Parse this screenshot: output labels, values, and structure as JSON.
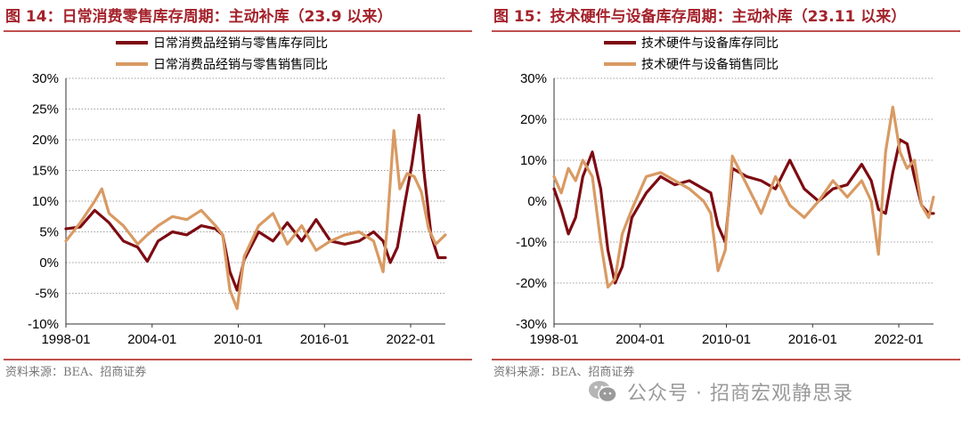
{
  "figures": [
    {
      "title": "图 14：日常消费零售库存周期：主动补库（23.9 以来）",
      "source": "资料来源：BEA、招商证券"
    },
    {
      "title": "图 15：技术硬件与设备库存周期：主动补库（23.11 以来）",
      "source": "资料来源：BEA、招商证券"
    }
  ],
  "watermark": {
    "text": "公众号 · 招商宏观静思录",
    "icon": "wechat-icon",
    "color": "#9a9a9a"
  },
  "colors": {
    "inventory": "#7d0b12",
    "sales": "#d99a63",
    "title": "#a4222b",
    "rule": "#c0504d",
    "grid": "#a0a0a0"
  },
  "chart_data": [
    {
      "type": "line",
      "title": "",
      "xlabel": "",
      "ylabel": "",
      "xlim": [
        "1998-01",
        "2024-06"
      ],
      "ylim": [
        -10,
        30
      ],
      "y_unit": "%",
      "grid": "horizontal",
      "legend": "top-center",
      "x_tick_labels": [
        "1998-01",
        "2004-01",
        "2010-01",
        "2016-01",
        "2022-01"
      ],
      "y_tick_labels": [
        "-10%",
        "-5%",
        "0%",
        "5%",
        "10%",
        "15%",
        "20%",
        "25%",
        "30%"
      ],
      "series": [
        {
          "name": "日常消费品经销与零售库存同比",
          "color": "#7d0b12",
          "x": [
            "1998-01",
            "1999-01",
            "2000-01",
            "2001-01",
            "2002-01",
            "2003-01",
            "2003-09",
            "2004-06",
            "2005-06",
            "2006-06",
            "2007-06",
            "2008-06",
            "2008-12",
            "2009-06",
            "2009-12",
            "2010-06",
            "2011-06",
            "2012-06",
            "2013-06",
            "2014-06",
            "2015-06",
            "2016-06",
            "2017-06",
            "2018-06",
            "2019-06",
            "2020-02",
            "2020-08",
            "2021-02",
            "2021-08",
            "2022-02",
            "2022-08",
            "2022-12",
            "2023-06",
            "2023-12",
            "2024-06"
          ],
          "values": [
            5.5,
            5.8,
            8.5,
            6.5,
            3.5,
            2.5,
            0.2,
            3.5,
            5.0,
            4.5,
            6.0,
            5.5,
            4.5,
            -1.5,
            -4.5,
            0.5,
            5.0,
            3.5,
            6.5,
            3.5,
            7.0,
            3.5,
            3.0,
            3.5,
            5.0,
            3.5,
            0.0,
            2.5,
            9.5,
            16.0,
            24.0,
            15.0,
            4.5,
            0.8,
            0.8
          ]
        },
        {
          "name": "日常消费品经销与零售销售同比",
          "color": "#d99a63",
          "x": [
            "1998-01",
            "1999-01",
            "2000-01",
            "2000-07",
            "2001-01",
            "2002-01",
            "2003-01",
            "2003-09",
            "2004-06",
            "2005-06",
            "2006-06",
            "2007-06",
            "2008-06",
            "2008-12",
            "2009-06",
            "2009-12",
            "2010-06",
            "2011-06",
            "2012-06",
            "2013-06",
            "2014-06",
            "2015-06",
            "2016-06",
            "2017-06",
            "2018-06",
            "2019-06",
            "2020-02",
            "2020-05",
            "2020-11",
            "2021-04",
            "2021-10",
            "2022-04",
            "2022-10",
            "2023-04",
            "2023-10",
            "2024-06"
          ],
          "values": [
            3.5,
            6.5,
            10.0,
            12.0,
            8.0,
            6.0,
            3.0,
            4.5,
            6.0,
            7.5,
            7.0,
            8.5,
            6.0,
            4.5,
            -4.5,
            -7.5,
            1.0,
            6.0,
            8.0,
            3.0,
            6.0,
            2.0,
            3.5,
            4.5,
            5.0,
            3.5,
            -1.5,
            5.0,
            21.5,
            12.0,
            14.5,
            14.0,
            11.5,
            5.5,
            3.0,
            4.5
          ]
        }
      ]
    },
    {
      "type": "line",
      "title": "",
      "xlabel": "",
      "ylabel": "",
      "xlim": [
        "1998-01",
        "2024-06"
      ],
      "ylim": [
        -30,
        30
      ],
      "y_unit": "%",
      "grid": "horizontal",
      "legend": "top-center",
      "x_tick_labels": [
        "1998-01",
        "2004-01",
        "2010-01",
        "2016-01",
        "2022-01"
      ],
      "y_tick_labels": [
        "-30%",
        "-20%",
        "-10%",
        "0%",
        "10%",
        "20%",
        "30%"
      ],
      "series": [
        {
          "name": "技术硬件与设备库存同比",
          "color": "#7d0b12",
          "x": [
            "1998-01",
            "1998-07",
            "1999-01",
            "1999-07",
            "2000-01",
            "2000-09",
            "2001-04",
            "2001-10",
            "2002-04",
            "2002-10",
            "2003-06",
            "2004-06",
            "2005-06",
            "2006-06",
            "2007-06",
            "2008-06",
            "2008-12",
            "2009-06",
            "2009-12",
            "2010-06",
            "2011-06",
            "2012-06",
            "2013-06",
            "2014-06",
            "2015-06",
            "2016-06",
            "2017-06",
            "2018-06",
            "2019-06",
            "2020-02",
            "2020-08",
            "2021-02",
            "2021-08",
            "2022-02",
            "2022-08",
            "2023-02",
            "2023-08",
            "2024-02",
            "2024-06"
          ],
          "values": [
            3.0,
            -2.0,
            -8.0,
            -4.0,
            6.0,
            12.0,
            3.0,
            -12.0,
            -20.0,
            -16.0,
            -4.0,
            2.0,
            6.0,
            4.0,
            5.0,
            3.0,
            2.0,
            -6.0,
            -10.0,
            8.0,
            6.0,
            5.0,
            3.0,
            10.0,
            3.0,
            0.0,
            3.0,
            4.0,
            9.0,
            5.0,
            -2.0,
            -3.0,
            7.0,
            15.0,
            14.0,
            6.0,
            -1.0,
            -3.0,
            -3.0
          ]
        },
        {
          "name": "技术硬件与设备销售同比",
          "color": "#d99a63",
          "x": [
            "1998-01",
            "1998-07",
            "1999-01",
            "1999-07",
            "2000-01",
            "2000-09",
            "2001-04",
            "2001-10",
            "2002-04",
            "2002-10",
            "2003-06",
            "2004-06",
            "2005-06",
            "2006-06",
            "2007-06",
            "2008-06",
            "2008-12",
            "2009-06",
            "2009-12",
            "2010-06",
            "2011-06",
            "2012-06",
            "2013-06",
            "2014-06",
            "2015-06",
            "2016-06",
            "2017-06",
            "2018-06",
            "2019-06",
            "2020-02",
            "2020-08",
            "2021-02",
            "2021-08",
            "2022-02",
            "2022-08",
            "2023-02",
            "2023-08",
            "2024-02",
            "2024-06"
          ],
          "values": [
            6.0,
            2.0,
            8.0,
            5.0,
            10.0,
            6.0,
            -10.0,
            -21.0,
            -19.0,
            -8.0,
            -2.0,
            6.0,
            7.0,
            5.0,
            3.0,
            0.0,
            -3.0,
            -17.0,
            -12.0,
            11.0,
            4.0,
            -3.0,
            6.0,
            -1.0,
            -4.0,
            0.0,
            5.0,
            1.0,
            5.0,
            0.0,
            -13.0,
            12.0,
            23.0,
            12.0,
            8.0,
            10.0,
            -1.0,
            -4.0,
            1.0
          ]
        }
      ]
    }
  ]
}
